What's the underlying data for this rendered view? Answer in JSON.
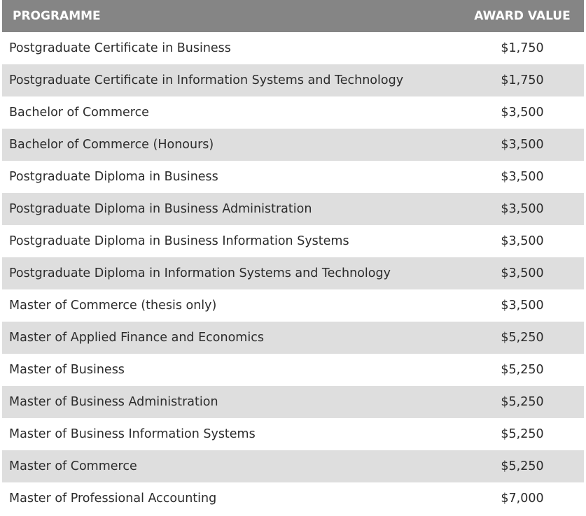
{
  "table": {
    "headers": {
      "programme": "PROGRAMME",
      "award_value": "AWARD VALUE"
    },
    "rows": [
      {
        "programme": "Postgraduate Certificate in Business",
        "award_value": "$1,750"
      },
      {
        "programme": "Postgraduate Certificate in Information Systems and Technology",
        "award_value": "$1,750"
      },
      {
        "programme": "Bachelor of Commerce",
        "award_value": "$3,500"
      },
      {
        "programme": "Bachelor of Commerce (Honours)",
        "award_value": "$3,500"
      },
      {
        "programme": "Postgraduate Diploma in Business",
        "award_value": "$3,500"
      },
      {
        "programme": "Postgraduate Diploma in Business Administration",
        "award_value": "$3,500"
      },
      {
        "programme": "Postgraduate Diploma in Business Information Systems",
        "award_value": "$3,500"
      },
      {
        "programme": "Postgraduate Diploma in Information Systems and Technology",
        "award_value": "$3,500"
      },
      {
        "programme": "Master of Commerce (thesis only)",
        "award_value": "$3,500"
      },
      {
        "programme": "Master of Applied Finance and Economics",
        "award_value": "$5,250"
      },
      {
        "programme": "Master of Business",
        "award_value": "$5,250"
      },
      {
        "programme": "Master of Business Administration",
        "award_value": "$5,250"
      },
      {
        "programme": "Master of Business Information Systems",
        "award_value": "$5,250"
      },
      {
        "programme": "Master of Commerce",
        "award_value": "$5,250"
      },
      {
        "programme": "Master of Professional Accounting",
        "award_value": "$7,000"
      }
    ]
  },
  "colors": {
    "header_bg": "#858585",
    "header_text": "#ffffff",
    "row_alt_bg": "#dedede",
    "row_bg": "#ffffff",
    "text": "#2b2b2b"
  }
}
